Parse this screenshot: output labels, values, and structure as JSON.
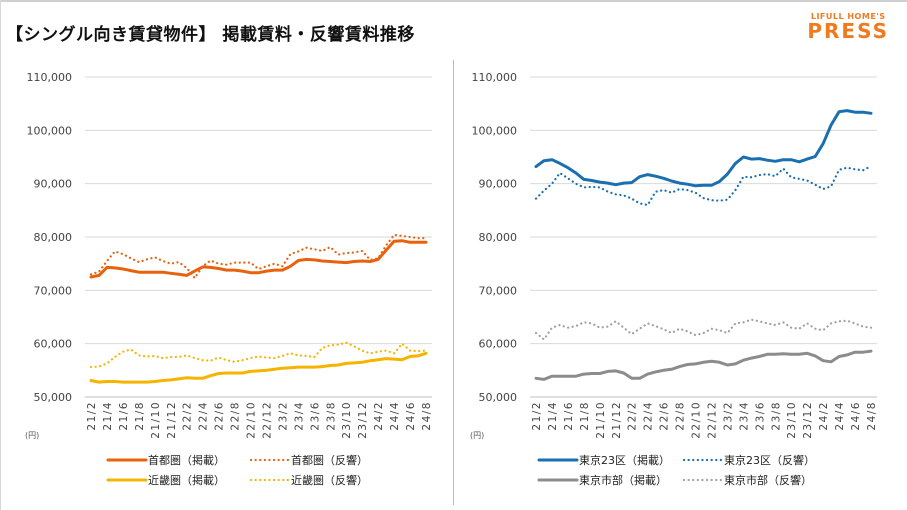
{
  "header": {
    "title": "【シングル向き賃貸物件】 掲載賃料・反響賃料推移",
    "logo_line1": "LIFULL HOME'S",
    "logo_line2": "PRESS"
  },
  "chart_data": [
    {
      "type": "line",
      "unit_label": "(円)",
      "ylim": [
        50000,
        110000
      ],
      "y_ticks": [
        "50,000",
        "60,000",
        "70,000",
        "80,000",
        "90,000",
        "100,000",
        "110,000"
      ],
      "grid": true,
      "legend_position": "bottom",
      "x_tick_labels": [
        "21/2",
        "21/4",
        "21/6",
        "21/8",
        "21/10",
        "21/12",
        "22/2",
        "22/4",
        "22/6",
        "22/8",
        "22/10",
        "22/12",
        "23/2",
        "23/4",
        "23/6",
        "23/8",
        "23/10",
        "23/12",
        "24/2",
        "24/4",
        "24/6",
        "24/8"
      ],
      "x_start": "21/2",
      "x_end": "24/8",
      "x_frequency": "monthly",
      "series": [
        {
          "name": "首都圏（掲載）",
          "color": "#e8620e",
          "style": "solid",
          "values": [
            72500,
            72800,
            74300,
            74200,
            74000,
            73700,
            73400,
            73400,
            73400,
            73400,
            73200,
            73000,
            72800,
            73600,
            74400,
            74300,
            74100,
            73800,
            73800,
            73600,
            73300,
            73300,
            73600,
            73800,
            73800,
            74500,
            75600,
            75800,
            75700,
            75500,
            75400,
            75300,
            75200,
            75400,
            75500,
            75400,
            75800,
            77500,
            79200,
            79300,
            79000,
            79000,
            79000
          ]
        },
        {
          "name": "首都圏（反響）",
          "color": "#e8620e",
          "style": "dotted",
          "values": [
            73000,
            73500,
            75500,
            77300,
            76800,
            76000,
            75300,
            75800,
            76200,
            75500,
            75000,
            75300,
            74200,
            72300,
            74500,
            75600,
            75000,
            74800,
            75200,
            75200,
            75200,
            74000,
            74500,
            75000,
            74500,
            76800,
            77300,
            78000,
            77700,
            77400,
            78100,
            76700,
            77000,
            77100,
            77400,
            75700,
            76000,
            78400,
            80400,
            80200,
            80000,
            79800,
            79800
          ]
        },
        {
          "name": "近畿圏（掲載）",
          "color": "#f5b400",
          "style": "solid",
          "values": [
            53100,
            52800,
            52900,
            52900,
            52800,
            52800,
            52800,
            52800,
            52900,
            53100,
            53200,
            53400,
            53600,
            53500,
            53500,
            54000,
            54400,
            54500,
            54500,
            54500,
            54800,
            54900,
            55000,
            55200,
            55400,
            55500,
            55600,
            55600,
            55600,
            55700,
            55900,
            56000,
            56300,
            56400,
            56500,
            56800,
            57000,
            57200,
            57100,
            57000,
            57600,
            57700,
            58200
          ]
        },
        {
          "name": "近畿圏（反響）",
          "color": "#f5b400",
          "style": "dotted",
          "values": [
            55600,
            55700,
            56300,
            57500,
            58500,
            58900,
            57800,
            57600,
            57700,
            57300,
            57500,
            57500,
            57800,
            57300,
            56900,
            56800,
            57400,
            56900,
            56600,
            56900,
            57300,
            57600,
            57400,
            57300,
            57700,
            58200,
            57800,
            57700,
            57500,
            59200,
            59700,
            59800,
            60200,
            59500,
            58700,
            58200,
            58500,
            58700,
            58200,
            60000,
            58700,
            58600,
            58700
          ]
        }
      ]
    },
    {
      "type": "line",
      "unit_label": "(円)",
      "ylim": [
        50000,
        110000
      ],
      "y_ticks": [
        "50,000",
        "60,000",
        "70,000",
        "80,000",
        "90,000",
        "100,000",
        "110,000"
      ],
      "grid": true,
      "legend_position": "bottom",
      "x_tick_labels": [
        "21/2",
        "21/4",
        "21/6",
        "21/8",
        "21/10",
        "21/12",
        "22/2",
        "22/4",
        "22/6",
        "22/8",
        "22/10",
        "22/12",
        "23/2",
        "23/4",
        "23/6",
        "23/8",
        "23/10",
        "23/12",
        "24/2",
        "24/4",
        "24/6",
        "24/8"
      ],
      "x_start": "21/2",
      "x_end": "24/8",
      "x_frequency": "monthly",
      "series": [
        {
          "name": "東京23区（掲載）",
          "color": "#1a6fb0",
          "style": "solid",
          "values": [
            93200,
            94300,
            94500,
            93800,
            93000,
            92000,
            90800,
            90600,
            90300,
            90100,
            89800,
            90100,
            90200,
            91300,
            91700,
            91400,
            91000,
            90500,
            90100,
            89900,
            89600,
            89700,
            89700,
            90400,
            91800,
            93800,
            95000,
            94600,
            94700,
            94400,
            94200,
            94500,
            94500,
            94100,
            94600,
            95100,
            97500,
            101000,
            103500,
            103700,
            103400,
            103400,
            103200
          ]
        },
        {
          "name": "東京23区（反響）",
          "color": "#1a6fb0",
          "style": "dotted",
          "values": [
            87200,
            88700,
            90000,
            92000,
            91000,
            90000,
            89300,
            89400,
            89300,
            88500,
            88000,
            87800,
            87200,
            86300,
            86000,
            88500,
            88800,
            88300,
            89000,
            88800,
            88300,
            87300,
            86900,
            86800,
            87000,
            88800,
            91300,
            91200,
            91600,
            91800,
            91400,
            92800,
            91200,
            90900,
            90600,
            89800,
            89000,
            89500,
            92600,
            93000,
            92700,
            92500,
            93300
          ]
        },
        {
          "name": "東京市部（掲載）",
          "color": "#8c8c8c",
          "style": "solid",
          "values": [
            53500,
            53300,
            53900,
            53900,
            53900,
            53900,
            54300,
            54400,
            54400,
            54800,
            54900,
            54500,
            53500,
            53500,
            54300,
            54700,
            55000,
            55200,
            55700,
            56100,
            56200,
            56500,
            56700,
            56500,
            56000,
            56200,
            56900,
            57300,
            57600,
            58000,
            58000,
            58100,
            58000,
            58000,
            58200,
            57700,
            56800,
            56600,
            57600,
            57900,
            58400,
            58400,
            58600
          ]
        },
        {
          "name": "東京市部（反響）",
          "color": "#a0a0a0",
          "style": "dotted",
          "values": [
            62000,
            60800,
            63000,
            63500,
            63000,
            63300,
            64000,
            63800,
            63000,
            63200,
            64200,
            63000,
            61800,
            62800,
            63800,
            63300,
            62700,
            62000,
            62800,
            62300,
            61600,
            62000,
            62800,
            62500,
            62000,
            63800,
            64000,
            64500,
            64200,
            63800,
            63500,
            64000,
            63000,
            62800,
            63800,
            62800,
            62500,
            63800,
            64200,
            64300,
            63800,
            63200,
            63000
          ]
        }
      ]
    }
  ]
}
